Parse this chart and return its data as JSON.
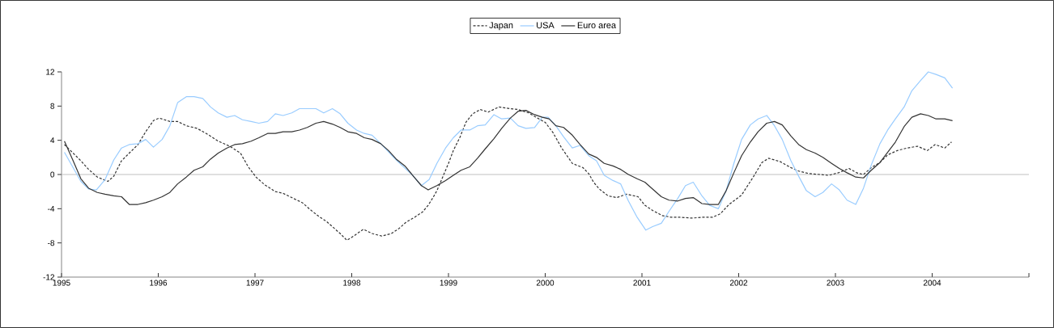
{
  "chart_data": {
    "type": "line",
    "xlim": [
      1995,
      2005
    ],
    "ylim": [
      -12,
      12
    ],
    "xticks": [
      1995,
      1996,
      1997,
      1998,
      1999,
      2000,
      2001,
      2002,
      2003,
      2004,
      {
        "value": 2005,
        "label": null
      }
    ],
    "yticks": [
      -12,
      -8,
      -4,
      0,
      4,
      8,
      12
    ],
    "legend": "top",
    "ref_lines": [
      {
        "axis": "y",
        "value": 0,
        "color": "#c0c0c0"
      }
    ],
    "series": [
      {
        "name": "Japan",
        "color": "#333333",
        "line_style": "dashed",
        "x": [
          1995.03,
          1995.12,
          1995.2,
          1995.28,
          1995.37,
          1995.48,
          1995.54,
          1995.62,
          1995.7,
          1995.79,
          1995.87,
          1995.95,
          1996.01,
          1996.12,
          1996.2,
          1996.29,
          1996.4,
          1996.51,
          1996.62,
          1996.74,
          1996.85,
          1996.93,
          1997.01,
          1997.1,
          1997.21,
          1997.29,
          1997.38,
          1997.49,
          1997.57,
          1997.66,
          1997.74,
          1997.82,
          1997.88,
          1997.95,
          1998.02,
          1998.12,
          1998.21,
          1998.31,
          1998.41,
          1998.49,
          1998.56,
          1998.65,
          1998.73,
          1998.79,
          1998.84,
          1998.88,
          1998.94,
          1999.0,
          1999.05,
          1999.12,
          1999.18,
          1999.25,
          1999.33,
          1999.41,
          1999.52,
          1999.64,
          1999.72,
          1999.83,
          1999.92,
          2000.0,
          2000.08,
          2000.17,
          2000.28,
          2000.39,
          2000.45,
          2000.5,
          2000.56,
          2000.65,
          2000.74,
          2000.84,
          2000.96,
          2001.03,
          2001.11,
          2001.21,
          2001.3,
          2001.39,
          2001.52,
          2001.62,
          2001.73,
          2001.81,
          2001.9,
          2002.03,
          2002.15,
          2002.24,
          2002.31,
          2002.43,
          2002.54,
          2002.62,
          2002.73,
          2002.84,
          2002.93,
          2003.03,
          2003.14,
          2003.22,
          2003.29,
          2003.37,
          2003.46,
          2003.54,
          2003.64,
          2003.74,
          2003.85,
          2003.95,
          2004.03,
          2004.13,
          2004.2
        ],
        "values": [
          3.5,
          2.5,
          1.6,
          0.6,
          -0.3,
          -0.8,
          -0.2,
          1.6,
          2.5,
          3.5,
          5.0,
          6.3,
          6.6,
          6.2,
          6.2,
          5.7,
          5.4,
          4.7,
          3.9,
          3.3,
          2.5,
          0.9,
          -0.3,
          -1.2,
          -2.0,
          -2.2,
          -2.7,
          -3.3,
          -4.1,
          -4.9,
          -5.5,
          -6.3,
          -6.9,
          -7.7,
          -7.2,
          -6.4,
          -6.9,
          -7.2,
          -6.9,
          -6.3,
          -5.6,
          -5.0,
          -4.4,
          -3.6,
          -2.7,
          -1.9,
          -0.3,
          1.3,
          2.8,
          4.4,
          6.1,
          7.1,
          7.6,
          7.3,
          7.9,
          7.7,
          7.6,
          7.2,
          6.6,
          6.1,
          4.9,
          3.1,
          1.3,
          0.8,
          0.1,
          -0.9,
          -1.7,
          -2.5,
          -2.7,
          -2.3,
          -2.6,
          -3.6,
          -4.2,
          -4.8,
          -5.0,
          -5.0,
          -5.1,
          -5.0,
          -5.0,
          -4.6,
          -3.5,
          -2.4,
          -0.3,
          1.4,
          1.9,
          1.5,
          0.8,
          0.4,
          0.1,
          0.0,
          -0.1,
          0.2,
          0.7,
          0.2,
          0.0,
          0.8,
          1.4,
          2.3,
          2.8,
          3.1,
          3.3,
          2.8,
          3.5,
          3.1,
          3.8
        ]
      },
      {
        "name": "USA",
        "color": "#99ccff",
        "line_style": "solid",
        "x": [
          1995.03,
          1995.2,
          1995.28,
          1995.36,
          1995.45,
          1995.54,
          1995.62,
          1995.7,
          1995.79,
          1995.87,
          1995.95,
          1996.04,
          1996.12,
          1996.2,
          1996.29,
          1996.37,
          1996.46,
          1996.54,
          1996.62,
          1996.71,
          1996.79,
          1996.87,
          1996.96,
          1997.04,
          1997.13,
          1997.21,
          1997.29,
          1997.38,
          1997.46,
          1997.63,
          1997.71,
          1997.8,
          1997.88,
          1997.96,
          1998.05,
          1998.13,
          1998.21,
          1998.3,
          1998.46,
          1998.63,
          1998.72,
          1998.8,
          1998.88,
          1998.97,
          1999.05,
          1999.13,
          1999.22,
          1999.3,
          1999.38,
          1999.47,
          1999.55,
          1999.64,
          1999.72,
          1999.8,
          1999.89,
          1999.97,
          2000.03,
          2000.11,
          2000.19,
          2000.28,
          2000.36,
          2000.45,
          2000.53,
          2000.61,
          2000.7,
          2000.78,
          2000.86,
          2000.95,
          2001.04,
          2001.11,
          2001.2,
          2001.28,
          2001.37,
          2001.45,
          2001.53,
          2001.62,
          2001.7,
          2001.79,
          2001.87,
          2001.95,
          2002.03,
          2002.12,
          2002.2,
          2002.29,
          2002.37,
          2002.45,
          2002.54,
          2002.62,
          2002.7,
          2002.79,
          2002.87,
          2002.96,
          2003.04,
          2003.12,
          2003.21,
          2003.29,
          2003.37,
          2003.46,
          2003.54,
          2003.62,
          2003.71,
          2003.79,
          2003.88,
          2003.96,
          2004.04,
          2004.13,
          2004.21
        ],
        "values": [
          2.6,
          -0.8,
          -1.7,
          -1.8,
          -0.6,
          1.7,
          3.1,
          3.5,
          3.6,
          4.1,
          3.2,
          4.1,
          5.7,
          8.4,
          9.1,
          9.1,
          8.9,
          7.9,
          7.2,
          6.7,
          6.9,
          6.4,
          6.2,
          6.0,
          6.2,
          7.1,
          6.9,
          7.2,
          7.7,
          7.7,
          7.2,
          7.7,
          7.1,
          6.0,
          5.2,
          4.8,
          4.6,
          3.6,
          1.7,
          -0.1,
          -1.3,
          -0.6,
          1.3,
          3.1,
          4.3,
          5.2,
          5.2,
          5.7,
          5.8,
          7.0,
          6.5,
          6.6,
          5.7,
          5.4,
          5.5,
          6.7,
          6.7,
          5.7,
          4.4,
          3.1,
          3.4,
          2.2,
          1.6,
          -0.1,
          -0.7,
          -1.1,
          -3.1,
          -5.0,
          -6.5,
          -6.1,
          -5.7,
          -4.3,
          -2.8,
          -1.3,
          -0.9,
          -2.5,
          -3.6,
          -4.0,
          -1.9,
          1.3,
          4.1,
          5.8,
          6.5,
          6.9,
          5.7,
          4.1,
          1.6,
          -0.2,
          -1.9,
          -2.6,
          -2.1,
          -1.1,
          -1.8,
          -3.0,
          -3.5,
          -1.6,
          1.1,
          3.6,
          5.2,
          6.5,
          7.9,
          9.8,
          11.0,
          12.0,
          11.7,
          11.3,
          10.1
        ]
      },
      {
        "name": "Euro area",
        "color": "#333333",
        "line_style": "solid",
        "x": [
          1995.03,
          1995.12,
          1995.2,
          1995.28,
          1995.37,
          1995.45,
          1995.54,
          1995.62,
          1995.7,
          1995.79,
          1995.87,
          1995.95,
          1996.04,
          1996.12,
          1996.2,
          1996.29,
          1996.37,
          1996.46,
          1996.54,
          1996.62,
          1996.71,
          1996.79,
          1996.87,
          1996.96,
          1997.04,
          1997.13,
          1997.21,
          1997.29,
          1997.38,
          1997.46,
          1997.54,
          1997.63,
          1997.71,
          1997.8,
          1997.88,
          1997.96,
          1998.05,
          1998.13,
          1998.21,
          1998.3,
          1998.38,
          1998.46,
          1998.55,
          1998.63,
          1998.72,
          1998.79,
          1998.88,
          1998.97,
          1999.05,
          1999.13,
          1999.22,
          1999.3,
          1999.38,
          1999.47,
          1999.55,
          1999.64,
          1999.72,
          1999.8,
          1999.89,
          1999.97,
          2000.04,
          2000.11,
          2000.19,
          2000.28,
          2000.36,
          2000.45,
          2000.53,
          2000.61,
          2000.7,
          2000.78,
          2000.86,
          2000.95,
          2001.03,
          2001.11,
          2001.2,
          2001.28,
          2001.37,
          2001.45,
          2001.53,
          2001.62,
          2001.7,
          2001.79,
          2001.87,
          2001.95,
          2002.03,
          2002.12,
          2002.2,
          2002.29,
          2002.37,
          2002.45,
          2002.54,
          2002.62,
          2002.7,
          2002.79,
          2002.87,
          2002.96,
          2003.04,
          2003.12,
          2003.21,
          2003.29,
          2003.37,
          2003.46,
          2003.54,
          2003.62,
          2003.71,
          2003.79,
          2003.88,
          2003.96,
          2004.04,
          2004.13,
          2004.21
        ],
        "values": [
          3.9,
          1.6,
          -0.5,
          -1.6,
          -2.1,
          -2.3,
          -2.5,
          -2.6,
          -3.5,
          -3.5,
          -3.3,
          -3.0,
          -2.6,
          -2.1,
          -1.1,
          -0.3,
          0.5,
          0.9,
          1.8,
          2.5,
          3.1,
          3.5,
          3.6,
          3.9,
          4.3,
          4.8,
          4.8,
          5.0,
          5.0,
          5.2,
          5.5,
          6.0,
          6.2,
          5.9,
          5.5,
          5.0,
          4.8,
          4.3,
          4.1,
          3.6,
          2.8,
          1.8,
          1.0,
          -0.1,
          -1.3,
          -1.8,
          -1.3,
          -0.7,
          -0.1,
          0.5,
          0.9,
          1.9,
          3.0,
          4.2,
          5.4,
          6.6,
          7.4,
          7.5,
          7.0,
          6.7,
          6.5,
          5.7,
          5.5,
          4.6,
          3.5,
          2.4,
          2.0,
          1.3,
          1.0,
          0.6,
          0.0,
          -0.5,
          -0.9,
          -1.7,
          -2.6,
          -3.0,
          -3.1,
          -2.8,
          -2.7,
          -3.4,
          -3.5,
          -3.5,
          -1.9,
          0.2,
          2.2,
          3.8,
          5.0,
          6.0,
          6.2,
          5.8,
          4.5,
          3.5,
          2.9,
          2.5,
          2.0,
          1.3,
          0.7,
          0.2,
          -0.3,
          -0.4,
          0.5,
          1.4,
          2.6,
          3.8,
          5.6,
          6.7,
          7.1,
          6.9,
          6.5,
          6.5,
          6.3
        ]
      }
    ]
  }
}
